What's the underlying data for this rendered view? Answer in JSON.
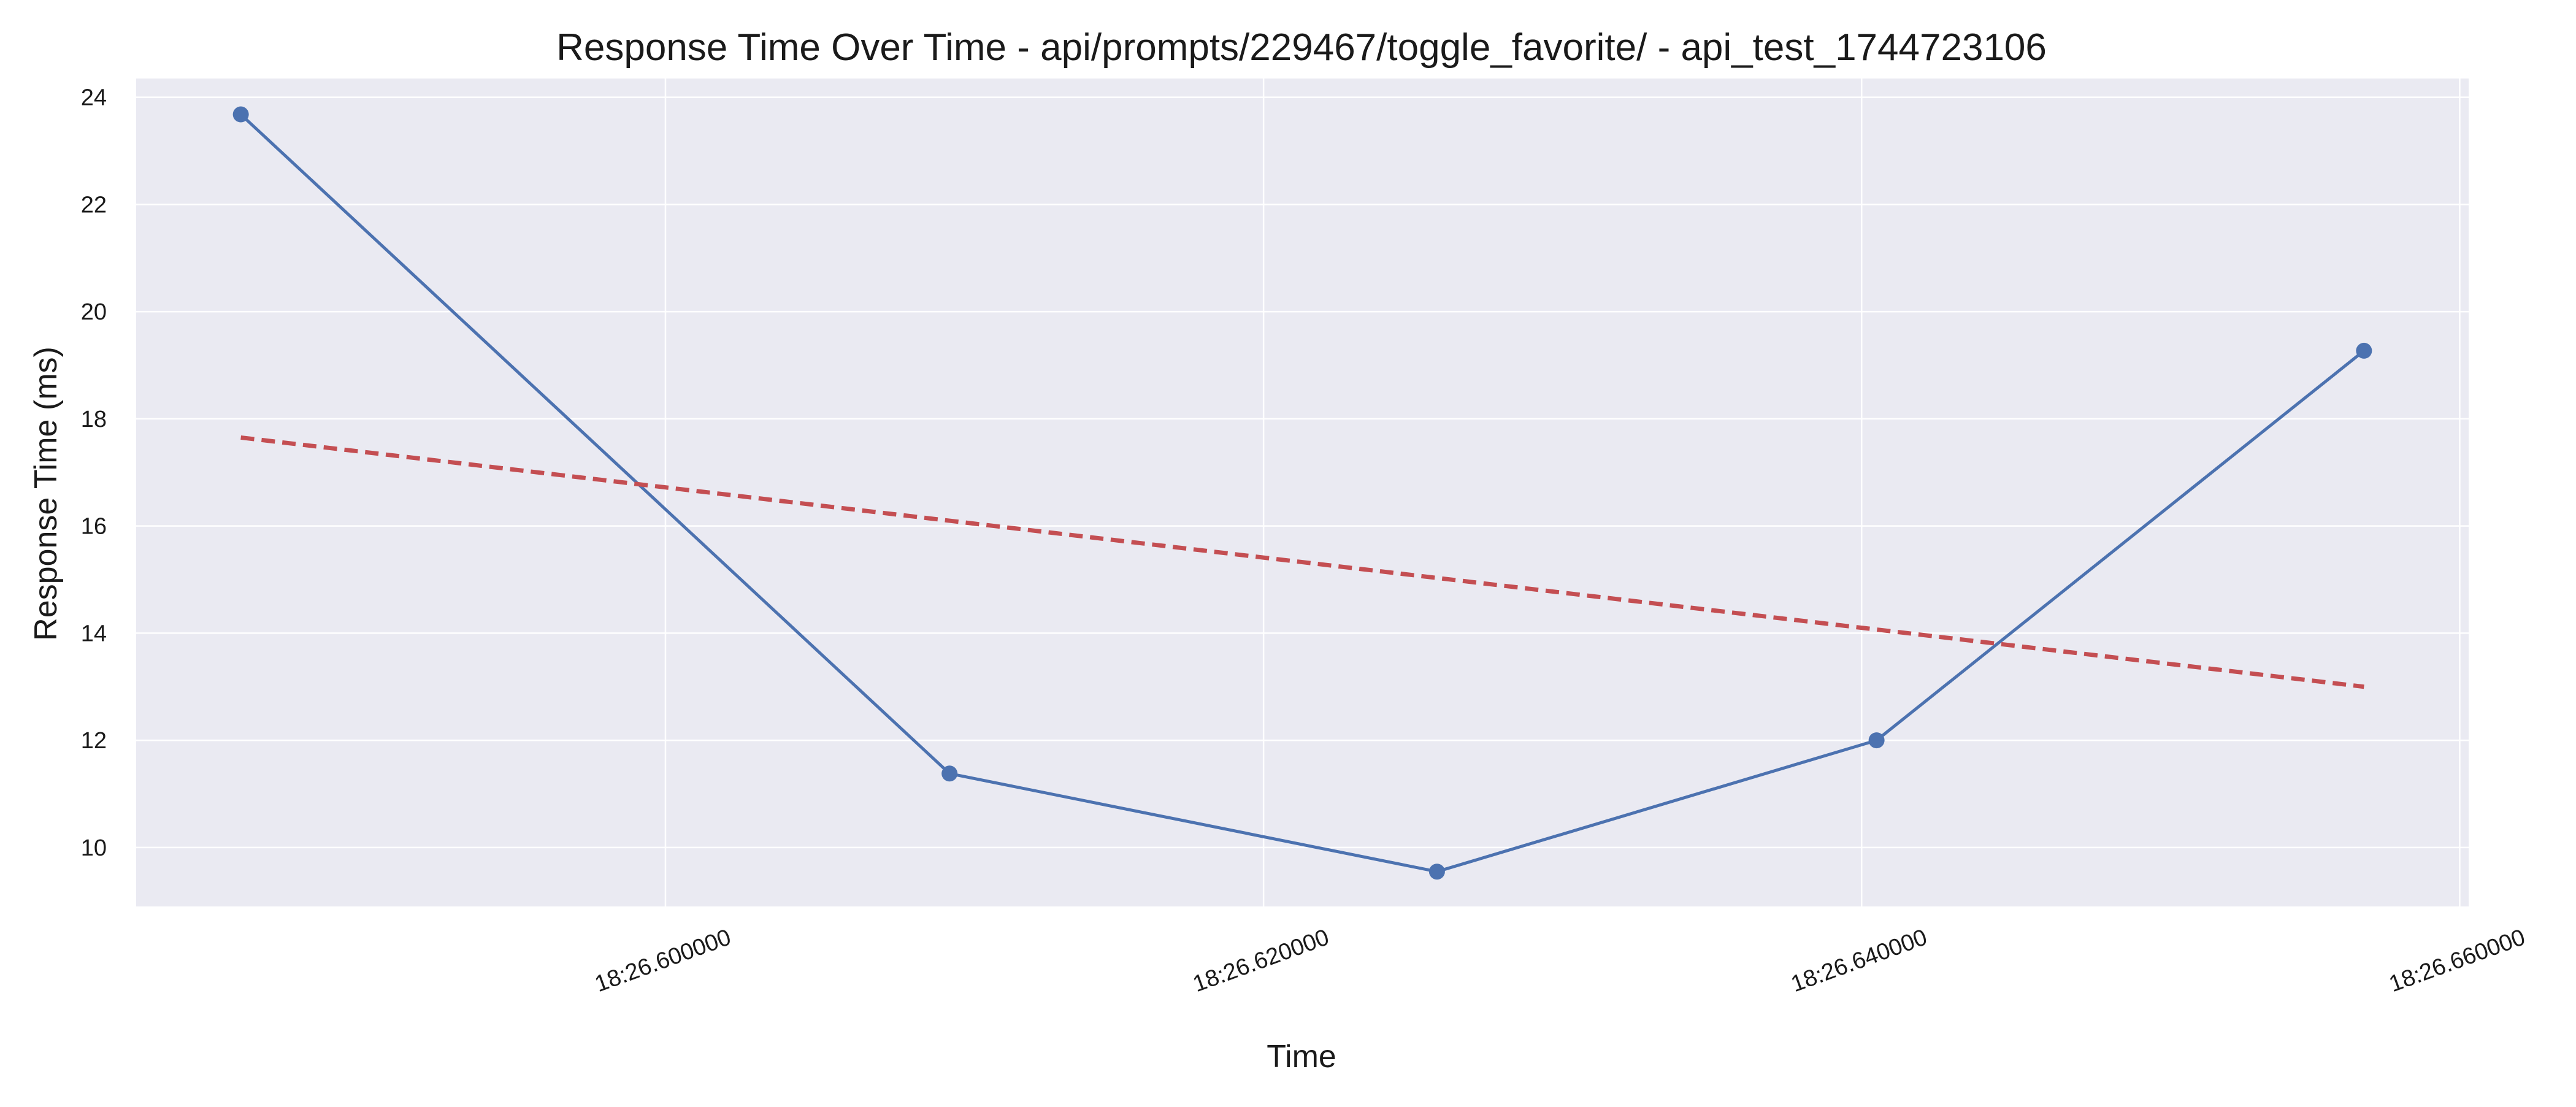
{
  "chart_data": {
    "type": "line",
    "title": "Response Time Over Time - api/prompts/229467/toggle_favorite/ - api_test_1744723106",
    "xlabel": "Time",
    "ylabel": "Response Time (ms)",
    "x_unit": "seconds past 18:26",
    "x_ticks": [
      26.6,
      26.62,
      26.64,
      26.66
    ],
    "x_tick_labels": [
      "18:26.600000",
      "18:26.620000",
      "18:26.640000",
      "18:26.660000"
    ],
    "xlim": [
      26.5823,
      26.6603
    ],
    "y_ticks": [
      10,
      12,
      14,
      16,
      18,
      20,
      22,
      24
    ],
    "y_tick_labels": [
      "10",
      "12",
      "14",
      "16",
      "18",
      "20",
      "22",
      "24"
    ],
    "ylim": [
      8.9,
      24.35
    ],
    "grid": true,
    "background": "#eaeaf2",
    "series": [
      {
        "style": "line-with-markers",
        "color": "#4c72b0",
        "x": [
          26.5858,
          26.6095,
          26.6258,
          26.6405,
          26.6568
        ],
        "y": [
          23.68,
          11.38,
          9.55,
          12.0,
          19.27
        ]
      },
      {
        "style": "dashed-trend",
        "color": "#c44e52",
        "x": [
          26.5858,
          26.6568
        ],
        "y": [
          17.65,
          13.0
        ]
      }
    ]
  }
}
